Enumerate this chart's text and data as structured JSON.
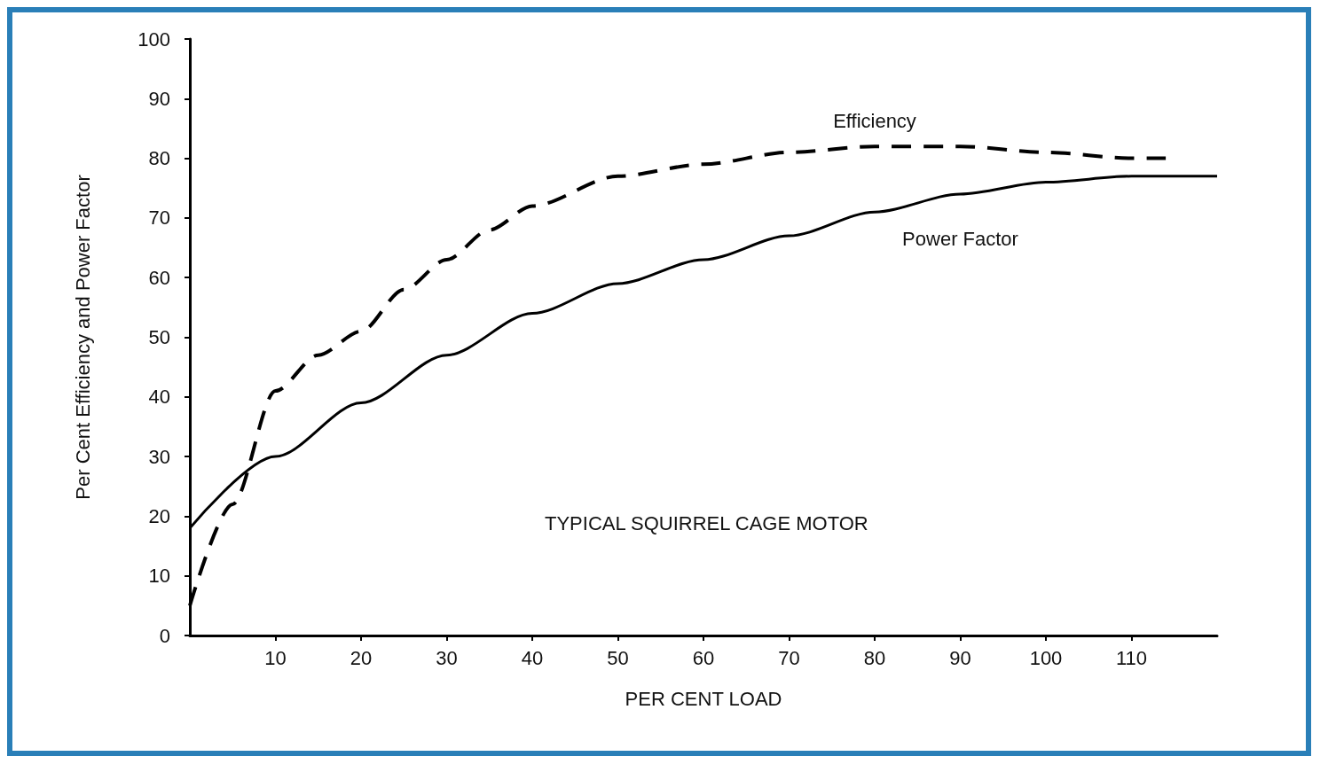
{
  "chart_data": {
    "type": "line",
    "xlabel": "PER CENT LOAD",
    "ylabel": "Per Cent Efficiency and Power Factor",
    "xlim": [
      0,
      120
    ],
    "xticks": [
      10,
      20,
      30,
      40,
      50,
      60,
      70,
      80,
      90,
      100,
      110
    ],
    "ylim": [
      0,
      100
    ],
    "yticks": [
      0,
      10,
      20,
      30,
      40,
      50,
      60,
      70,
      80,
      90,
      100
    ],
    "grid": false,
    "legend": false,
    "marker": "none",
    "annotations": [
      "TYPICAL SQUIRREL CAGE MOTOR"
    ],
    "series": [
      {
        "name": "Efficiency",
        "color": "#000000",
        "line_style": "dashed",
        "x": [
          0,
          5,
          10,
          15,
          20,
          25,
          30,
          35,
          40,
          50,
          60,
          70,
          80,
          90,
          100,
          110,
          114
        ],
        "values": [
          5,
          22,
          41,
          47,
          51,
          58,
          63,
          68,
          72,
          77,
          79,
          81,
          82,
          82,
          81,
          80,
          80
        ]
      },
      {
        "name": "Power Factor",
        "color": "#000000",
        "line_style": "solid",
        "x": [
          0,
          10,
          20,
          30,
          40,
          50,
          60,
          70,
          80,
          90,
          100,
          110,
          120
        ],
        "values": [
          18,
          30,
          39,
          47,
          54,
          59,
          63,
          67,
          71,
          74,
          76,
          77,
          77
        ]
      }
    ]
  }
}
